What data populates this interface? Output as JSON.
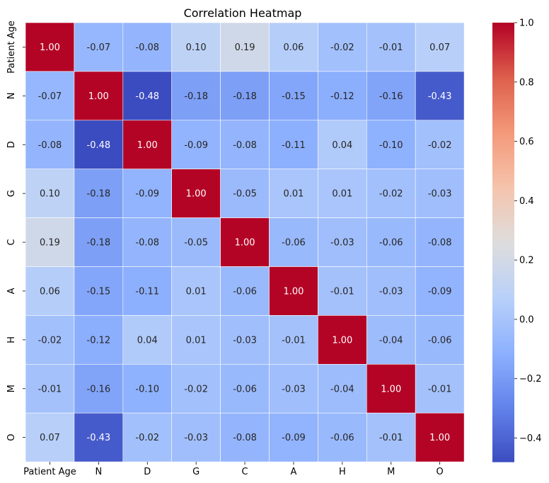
{
  "chart_data": {
    "type": "heatmap",
    "title": "Correlation Heatmap",
    "xlabel": "",
    "ylabel": "",
    "labels": [
      "Patient Age",
      "N",
      "D",
      "G",
      "C",
      "A",
      "H",
      "M",
      "O"
    ],
    "values": [
      [
        1.0,
        -0.07,
        -0.08,
        0.1,
        0.19,
        0.06,
        -0.02,
        -0.01,
        0.07
      ],
      [
        -0.07,
        1.0,
        -0.48,
        -0.18,
        -0.18,
        -0.15,
        -0.12,
        -0.16,
        -0.43
      ],
      [
        -0.08,
        -0.48,
        1.0,
        -0.09,
        -0.08,
        -0.11,
        0.04,
        -0.1,
        -0.02
      ],
      [
        0.1,
        -0.18,
        -0.09,
        1.0,
        -0.05,
        0.01,
        0.01,
        -0.02,
        -0.03
      ],
      [
        0.19,
        -0.18,
        -0.08,
        -0.05,
        1.0,
        -0.06,
        -0.03,
        -0.06,
        -0.08
      ],
      [
        0.06,
        -0.15,
        -0.11,
        0.01,
        -0.06,
        1.0,
        -0.01,
        -0.03,
        -0.09
      ],
      [
        -0.02,
        -0.12,
        0.04,
        0.01,
        -0.03,
        -0.01,
        1.0,
        -0.04,
        -0.06
      ],
      [
        -0.01,
        -0.16,
        -0.1,
        -0.02,
        -0.06,
        -0.03,
        -0.04,
        1.0,
        -0.01
      ],
      [
        0.07,
        -0.43,
        -0.02,
        -0.03,
        -0.08,
        -0.09,
        -0.06,
        -0.01,
        1.0
      ]
    ],
    "colormap": "coolwarm",
    "vmin": -0.48,
    "vmax": 1.0,
    "annotation_format": "2 decimals",
    "colorbar": {
      "ticks": [
        -0.4,
        -0.2,
        0.0,
        0.2,
        0.4,
        0.6,
        0.8,
        1.0
      ],
      "tick_labels": [
        "−0.4",
        "−0.2",
        "0.0",
        "0.2",
        "0.4",
        "0.6",
        "0.8",
        "1.0"
      ]
    },
    "grid": false,
    "legend": "colorbar-right"
  }
}
